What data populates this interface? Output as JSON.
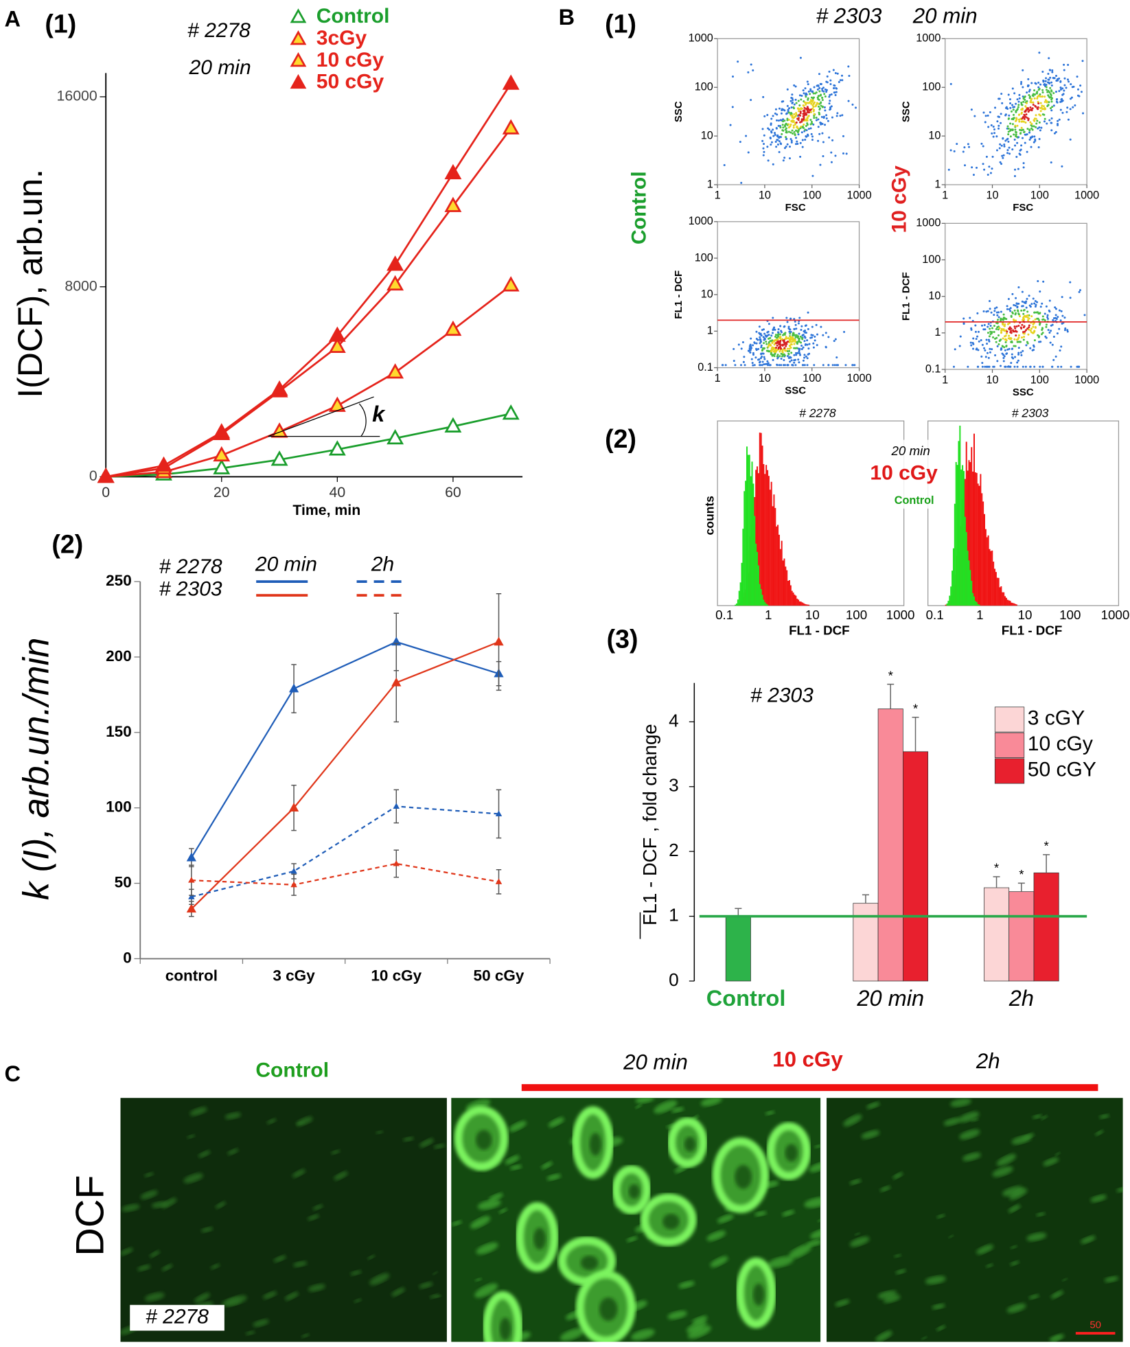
{
  "labels": {
    "A": "A",
    "B": "B",
    "C": "C",
    "p1": "(1)",
    "p2": "(2)",
    "p3": "(3)"
  },
  "chart_data": [
    {
      "type": "line",
      "annotations": [
        "# 2278",
        "20 min",
        "k"
      ],
      "xlabel": "Time, min",
      "ylabel": "I(DCF), arb.un.",
      "x": [
        0,
        10,
        20,
        30,
        40,
        50,
        60,
        70
      ],
      "xlim": [
        0,
        72
      ],
      "xticks": [
        0,
        20,
        40,
        60
      ],
      "ylim": [
        0,
        17000
      ],
      "yticks": [
        0,
        8000,
        16000
      ],
      "series": [
        {
          "name": "Control",
          "color": "#1a9e2c",
          "marker": "open",
          "values": [
            0,
            100,
            360,
            720,
            1150,
            1620,
            2120,
            2660
          ]
        },
        {
          "name": "3cGy",
          "color": "#e5231b",
          "marker": "filled",
          "marker_fill": "#ffd92e",
          "values": [
            0,
            200,
            900,
            1900,
            2990,
            4390,
            6190,
            8060
          ]
        },
        {
          "name": "10 cGy",
          "color": "#e5231b",
          "marker": "filled",
          "marker_fill": "#ffd92e",
          "values": [
            0,
            360,
            1800,
            3600,
            5470,
            8100,
            11400,
            14670
          ]
        },
        {
          "name": "50 cGy",
          "color": "#e5231b",
          "marker": "filled",
          "marker_fill": "#e5231b",
          "values": [
            0,
            470,
            1870,
            3670,
            5940,
            8930,
            12780,
            16550
          ]
        }
      ]
    },
    {
      "type": "line",
      "ylabel": "k (I), arb.un./min",
      "categories": [
        "control",
        "3 cGy",
        "10 cGy",
        "50 cGy"
      ],
      "ylim": [
        0,
        250
      ],
      "yticks": [
        0,
        50,
        100,
        150,
        200,
        250
      ],
      "legend": {
        "rows": [
          "# 2278",
          "# 2303"
        ],
        "columns": [
          "20 min",
          "2h"
        ]
      },
      "series": [
        {
          "color": "#1f5db8",
          "dash": false,
          "values": [
            67,
            179,
            210,
            189
          ],
          "errors": [
            6,
            16,
            19,
            8
          ]
        },
        {
          "color": "#e0361a",
          "dash": false,
          "values": [
            33,
            100,
            183,
            210
          ],
          "errors": [
            5,
            15,
            26,
            32
          ]
        },
        {
          "color": "#1f5db8",
          "dash": true,
          "values": [
            41,
            58,
            101,
            96
          ],
          "errors": [
            5,
            5,
            11,
            16
          ]
        },
        {
          "color": "#e0361a",
          "dash": true,
          "values": [
            52,
            49,
            63,
            51
          ],
          "errors": [
            10,
            7,
            9,
            8
          ]
        }
      ]
    },
    {
      "type": "bar",
      "title": "# 2303",
      "ylabel": "FL1 - DCF , fold change",
      "categories": [
        "Control",
        "20 min",
        "2h"
      ],
      "category_colors": [
        "#1fa33a",
        "#000000",
        "#000000"
      ],
      "ylim": [
        0,
        4.6
      ],
      "yticks": [
        0,
        1,
        2,
        3,
        4
      ],
      "ref_line": 1,
      "ref_color": "#2aa84a",
      "significance_label": "*",
      "control": {
        "value": 1,
        "error": 0.12,
        "color": "#2db34a"
      },
      "series": [
        {
          "name": "3 cGY",
          "color": "#fcd6d6",
          "values": [
            null,
            1.2,
            1.44
          ],
          "errors": [
            null,
            0.13,
            0.17
          ],
          "significant": [
            false,
            false,
            true
          ]
        },
        {
          "name": "10 cGy",
          "color": "#f98a98",
          "values": [
            null,
            4.2,
            1.38
          ],
          "errors": [
            null,
            0.38,
            0.13
          ],
          "significant": [
            false,
            true,
            true
          ]
        },
        {
          "name": "50 cGY",
          "color": "#e8202e",
          "values": [
            null,
            3.54,
            1.67
          ],
          "errors": [
            null,
            0.53,
            0.28
          ],
          "significant": [
            false,
            true,
            true
          ]
        }
      ]
    }
  ],
  "flow": {
    "id": "# 2303",
    "time": "20 min",
    "control": "Control",
    "dose": "10 cGy",
    "fsc": "FSC",
    "ssc": "SSC",
    "fl1": "FL1 - DCF",
    "ticks": [
      1,
      10,
      100,
      1000
    ],
    "ticks_fl": [
      0.1,
      1,
      10,
      100,
      1000
    ],
    "gate": 2
  },
  "hist": {
    "ids": [
      "# 2278",
      "# 2303"
    ],
    "time": "20 min",
    "dose": "10 cGy",
    "control": "Control",
    "ylabel": "counts",
    "xlabel": "FL1 - DCF",
    "ticks": [
      0.1,
      1,
      10,
      100,
      1000
    ]
  },
  "micro": {
    "control": "Control",
    "time1": "20 min",
    "dose": "10 cGy",
    "time2": "2h",
    "stain": "DCF",
    "id": "# 2278",
    "scale": "50"
  }
}
